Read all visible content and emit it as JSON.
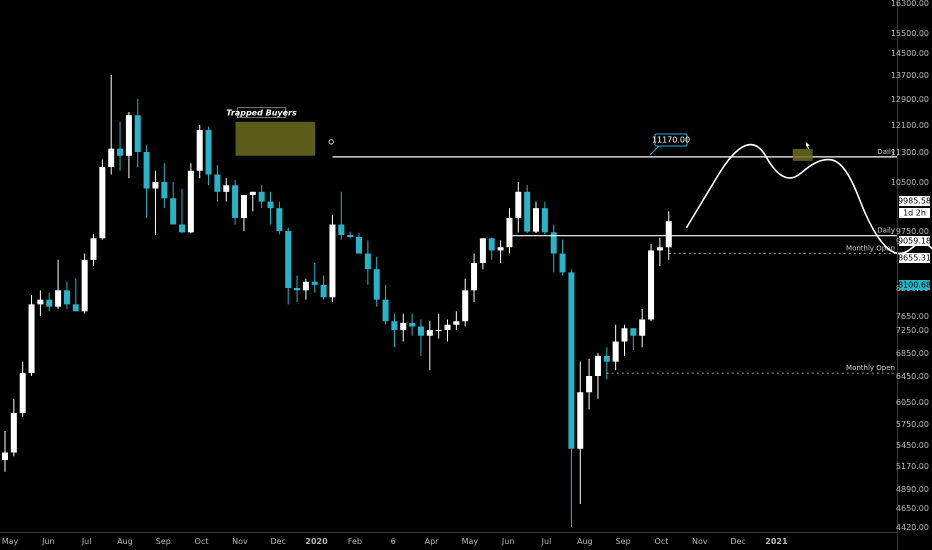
{
  "chart_data": {
    "type": "candlestick",
    "interval": "weekly",
    "y_axis": {
      "ylim": [
        4420,
        16300
      ],
      "ticks": [
        16300,
        15500,
        14500,
        13700,
        12900,
        12100,
        11300,
        10500,
        9750,
        9000,
        8250,
        7650,
        7250,
        6850,
        6450,
        6050,
        5750,
        5450,
        5170,
        4890,
        4650,
        4420
      ],
      "tick_labels": [
        "16300.00",
        "15500.00",
        "14500.00",
        "13700.00",
        "12900.00",
        "12100.00",
        "11300.00",
        "10500.00",
        "9750.00",
        "9000.00",
        "8250.00",
        "7650.00",
        "7250.00",
        "6850.00",
        "6450.00",
        "6050.00",
        "5750.00",
        "5450.00",
        "5170.00",
        "4890.00",
        "4650.00",
        "4420.00"
      ],
      "labels_above_top": [
        "16300.00"
      ]
    },
    "x_axis": {
      "tick_labels": [
        "May",
        "Jun",
        "Jul",
        "Aug",
        "Sep",
        "Oct",
        "Nov",
        "Dec",
        "2020",
        "Feb",
        "6",
        "Apr",
        "May",
        "Jun",
        "Jul",
        "Aug",
        "Sep",
        "Oct",
        "Nov",
        "Dec",
        "2021"
      ],
      "bold_labels": [
        "2020",
        "2021"
      ],
      "first_candle_week": 0,
      "weeks_per_month": 4.33
    },
    "candles": [
      {
        "o": 5250,
        "h": 5650,
        "l": 5100,
        "c": 5350
      },
      {
        "o": 5350,
        "h": 6100,
        "l": 5300,
        "c": 5900
      },
      {
        "o": 5900,
        "h": 6700,
        "l": 5850,
        "c": 6500
      },
      {
        "o": 6500,
        "h": 8100,
        "l": 6450,
        "c": 7900
      },
      {
        "o": 7900,
        "h": 8200,
        "l": 7650,
        "c": 8000
      },
      {
        "o": 8000,
        "h": 8150,
        "l": 7750,
        "c": 7850
      },
      {
        "o": 7850,
        "h": 8700,
        "l": 7800,
        "c": 8200
      },
      {
        "o": 8200,
        "h": 8350,
        "l": 7800,
        "c": 7900
      },
      {
        "o": 7900,
        "h": 8400,
        "l": 7750,
        "c": 7750
      },
      {
        "o": 7750,
        "h": 8800,
        "l": 7700,
        "c": 8700
      },
      {
        "o": 8700,
        "h": 9500,
        "l": 8600,
        "c": 9200
      },
      {
        "o": 9200,
        "h": 11100,
        "l": 9100,
        "c": 10900
      },
      {
        "o": 10900,
        "h": 13700,
        "l": 10700,
        "c": 11400
      },
      {
        "o": 11400,
        "h": 12200,
        "l": 10800,
        "c": 11200
      },
      {
        "o": 11200,
        "h": 12500,
        "l": 10600,
        "c": 12400
      },
      {
        "o": 12400,
        "h": 12900,
        "l": 10900,
        "c": 11300
      },
      {
        "o": 11300,
        "h": 11500,
        "l": 9950,
        "c": 10400
      },
      {
        "o": 10400,
        "h": 10800,
        "l": 9450,
        "c": 10500
      },
      {
        "o": 10500,
        "h": 11000,
        "l": 10100,
        "c": 10250
      },
      {
        "o": 10250,
        "h": 10500,
        "l": 9950,
        "c": 9850
      },
      {
        "o": 9850,
        "h": 10400,
        "l": 9600,
        "c": 9650
      },
      {
        "o": 9650,
        "h": 11000,
        "l": 9600,
        "c": 10800
      },
      {
        "o": 10800,
        "h": 12100,
        "l": 10600,
        "c": 11950
      },
      {
        "o": 11950,
        "h": 12050,
        "l": 10450,
        "c": 10700
      },
      {
        "o": 10700,
        "h": 10950,
        "l": 10200,
        "c": 10350
      },
      {
        "o": 10350,
        "h": 10600,
        "l": 10200,
        "c": 10450
      },
      {
        "o": 10450,
        "h": 10550,
        "l": 9850,
        "c": 9950
      },
      {
        "o": 9950,
        "h": 10300,
        "l": 9750,
        "c": 10300
      },
      {
        "o": 10300,
        "h": 10350,
        "l": 10050,
        "c": 10350
      },
      {
        "o": 10350,
        "h": 10450,
        "l": 10100,
        "c": 10200
      },
      {
        "o": 10200,
        "h": 10350,
        "l": 9850,
        "c": 10100
      },
      {
        "o": 10100,
        "h": 10200,
        "l": 9500,
        "c": 9750
      },
      {
        "o": 9750,
        "h": 9800,
        "l": 7900,
        "c": 8250
      },
      {
        "o": 8250,
        "h": 8450,
        "l": 7950,
        "c": 8200
      },
      {
        "o": 8200,
        "h": 8400,
        "l": 8000,
        "c": 8350
      },
      {
        "o": 8350,
        "h": 8650,
        "l": 8150,
        "c": 8300
      },
      {
        "o": 8300,
        "h": 8450,
        "l": 8000,
        "c": 8050
      },
      {
        "o": 8050,
        "h": 10000,
        "l": 7950,
        "c": 9850
      },
      {
        "o": 9850,
        "h": 10350,
        "l": 9100,
        "c": 9450
      },
      {
        "o": 9450,
        "h": 9700,
        "l": 9200,
        "c": 9300
      },
      {
        "o": 9300,
        "h": 9600,
        "l": 8800,
        "c": 8800
      },
      {
        "o": 8800,
        "h": 9050,
        "l": 8300,
        "c": 8550
      },
      {
        "o": 8550,
        "h": 8750,
        "l": 7850,
        "c": 8000
      },
      {
        "o": 8000,
        "h": 8300,
        "l": 7400,
        "c": 7500
      },
      {
        "o": 7500,
        "h": 7700,
        "l": 6950,
        "c": 7250
      },
      {
        "o": 7250,
        "h": 7700,
        "l": 7050,
        "c": 7450
      },
      {
        "o": 7450,
        "h": 7700,
        "l": 7150,
        "c": 7350
      },
      {
        "o": 7350,
        "h": 7550,
        "l": 6800,
        "c": 7150
      },
      {
        "o": 7150,
        "h": 7500,
        "l": 6550,
        "c": 7250
      },
      {
        "o": 7250,
        "h": 7700,
        "l": 7100,
        "c": 7250
      },
      {
        "o": 7250,
        "h": 7550,
        "l": 7050,
        "c": 7400
      },
      {
        "o": 7400,
        "h": 7750,
        "l": 7250,
        "c": 7500
      },
      {
        "o": 7500,
        "h": 8400,
        "l": 7350,
        "c": 8200
      },
      {
        "o": 8200,
        "h": 8800,
        "l": 7950,
        "c": 8650
      },
      {
        "o": 8650,
        "h": 9200,
        "l": 8550,
        "c": 9200
      },
      {
        "o": 9200,
        "h": 9250,
        "l": 8700,
        "c": 8850
      },
      {
        "o": 8850,
        "h": 9050,
        "l": 8650,
        "c": 8900
      },
      {
        "o": 8900,
        "h": 10100,
        "l": 8800,
        "c": 9950
      },
      {
        "o": 9950,
        "h": 10500,
        "l": 9650,
        "c": 10350
      },
      {
        "o": 10350,
        "h": 10450,
        "l": 9600,
        "c": 9700
      },
      {
        "o": 9700,
        "h": 10200,
        "l": 9600,
        "c": 10100
      },
      {
        "o": 10100,
        "h": 10200,
        "l": 9500,
        "c": 9650
      },
      {
        "o": 9650,
        "h": 9850,
        "l": 8500,
        "c": 8800
      },
      {
        "o": 8800,
        "h": 9100,
        "l": 8450,
        "c": 8500
      },
      {
        "o": 8500,
        "h": 8550,
        "l": 4420,
        "c": 5400
      },
      {
        "o": 5400,
        "h": 6700,
        "l": 4700,
        "c": 6200
      },
      {
        "o": 6200,
        "h": 6750,
        "l": 5950,
        "c": 6450
      },
      {
        "o": 6450,
        "h": 6850,
        "l": 6100,
        "c": 6800
      },
      {
        "o": 6800,
        "h": 6950,
        "l": 6400,
        "c": 6700
      },
      {
        "o": 6700,
        "h": 7400,
        "l": 6550,
        "c": 7050
      },
      {
        "o": 7050,
        "h": 7400,
        "l": 6800,
        "c": 7300
      },
      {
        "o": 7300,
        "h": 7300,
        "l": 6900,
        "c": 7150
      },
      {
        "o": 7150,
        "h": 7800,
        "l": 6950,
        "c": 7550
      },
      {
        "o": 7550,
        "h": 8950,
        "l": 7500,
        "c": 8850
      },
      {
        "o": 8850,
        "h": 9250,
        "l": 8600,
        "c": 8900
      },
      {
        "o": 8900,
        "h": 10050,
        "l": 8700,
        "c": 9900
      }
    ],
    "levels": [
      {
        "name": "Daily",
        "value": 11170,
        "style": "solid",
        "start_week": 37
      },
      {
        "name": "Daily",
        "value": 9400,
        "style": "solid",
        "start_week": 57
      },
      {
        "name": "Monthly Open",
        "value": 8800,
        "style": "dashed",
        "start_week": 75
      },
      {
        "name": "Monthly Open",
        "value": 6500,
        "style": "dashed",
        "start_week": 68
      }
    ],
    "price_tags": [
      {
        "label": "9985.58",
        "value": 9985.58,
        "bg": "#ffffff",
        "fg": "#000000"
      },
      {
        "label": "1d 2h",
        "value": 9800,
        "bg": "#ffffff",
        "fg": "#000000"
      },
      {
        "label": "9059.18",
        "value": 9059.18,
        "bg": "#ffffff",
        "fg": "#000000"
      },
      {
        "label": "8655.31",
        "value": 8655.31,
        "bg": "#ffffff",
        "fg": "#000000"
      },
      {
        "label": "8100.68",
        "value": 8100.68,
        "bg": "#26b4c8",
        "fg": "#000000"
      }
    ],
    "annotations": {
      "trapped_buyers": {
        "label": "Trapped Buyers",
        "week_start": 26.5,
        "week_end": 35.5,
        "low": 11200,
        "high": 12200
      },
      "target_callout": {
        "label": "11170.00"
      },
      "projection_path": [
        {
          "week": 77,
          "value": 9800
        },
        {
          "week": 84,
          "value": 12100
        },
        {
          "week": 88,
          "value": 10400
        },
        {
          "week": 92,
          "value": 11170
        },
        {
          "week": 95,
          "value": 11000
        },
        {
          "week": 98,
          "value": 9600
        },
        {
          "week": 101,
          "value": 8700
        },
        {
          "week": 104,
          "value": 9400
        },
        {
          "week": 107,
          "value": 8400
        },
        {
          "week": 110,
          "value": 8650
        },
        {
          "week": 114,
          "value": 7650
        }
      ]
    },
    "colors": {
      "background": "#000000",
      "up_candle": "#ffffff",
      "down_candle": "#26b4c8",
      "highlight_box": "#6b6b1e",
      "level_line": "#ffffff",
      "axis_text": "#b8b8b8"
    }
  }
}
